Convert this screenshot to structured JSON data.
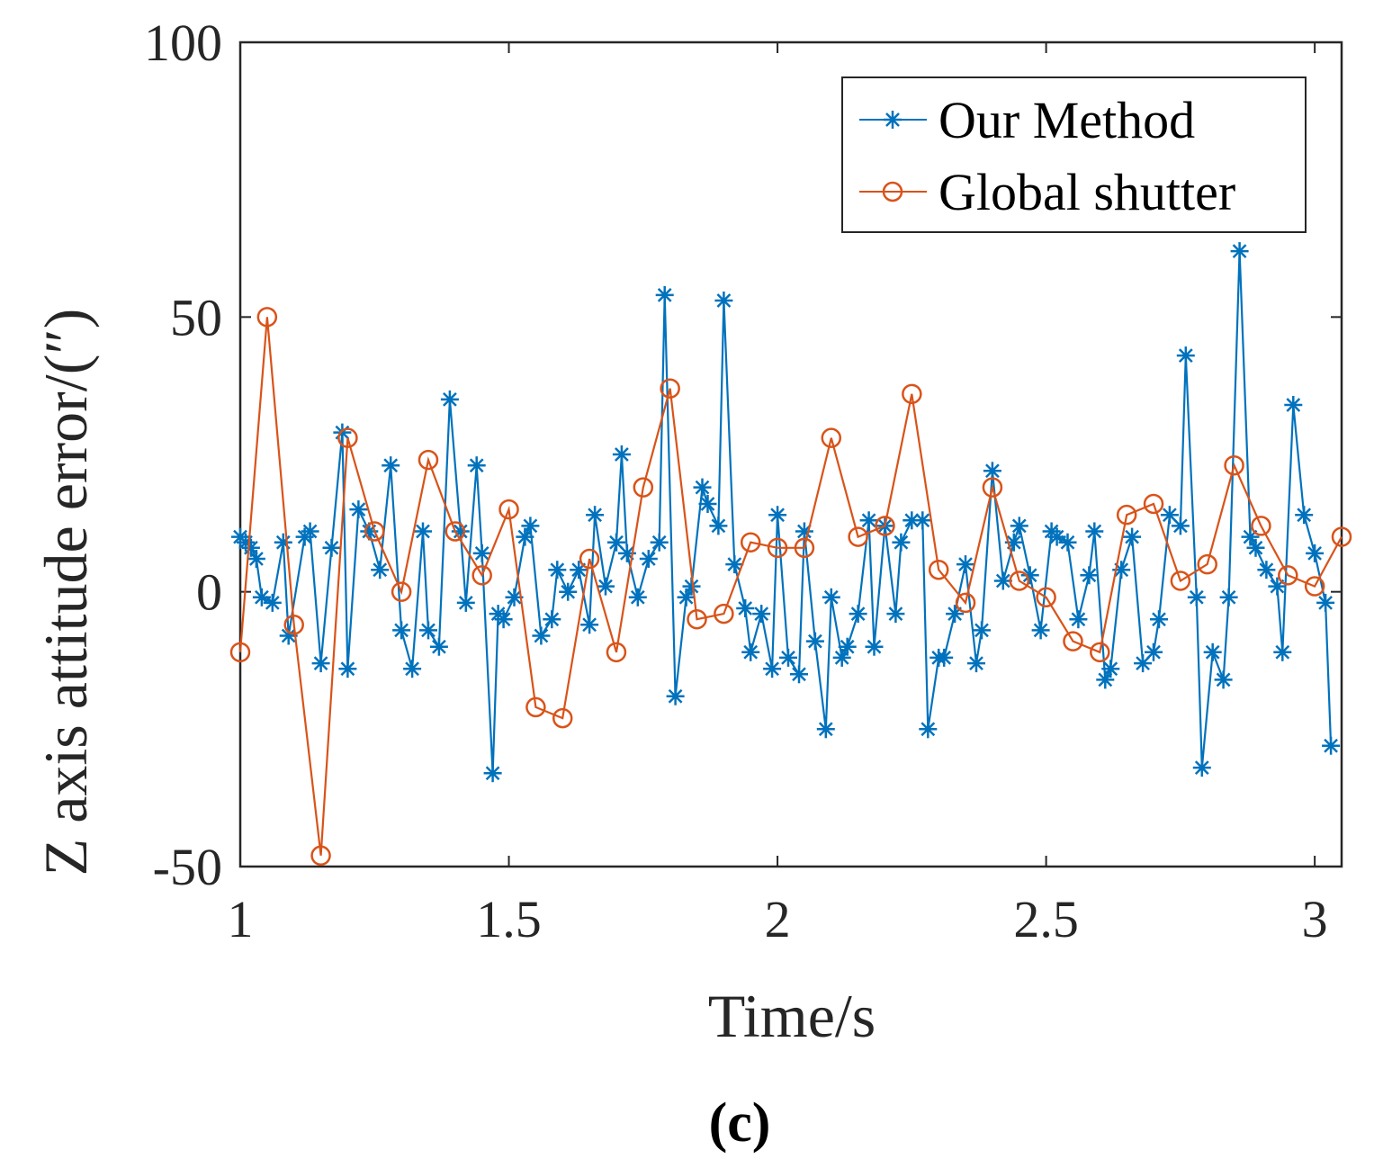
{
  "chart_data": {
    "type": "line",
    "title": "",
    "xlabel": "Time/s",
    "ylabel": "Z axis attitude error/(″)",
    "panel_label": "(c)",
    "xlim": [
      1,
      3.05
    ],
    "ylim": [
      -50,
      100
    ],
    "xticks": [
      1,
      1.5,
      2,
      2.5,
      3
    ],
    "xtick_labels": [
      "1",
      "1.5",
      "2",
      "2.5",
      "3"
    ],
    "yticks": [
      -50,
      0,
      50,
      100
    ],
    "ytick_labels": [
      "-50",
      "0",
      "50",
      "100"
    ],
    "grid": false,
    "legend_position": "top-right",
    "series": [
      {
        "name": "Our Method",
        "color": "#0072BD",
        "marker": "asterisk",
        "x": [
          1.0,
          1.01,
          1.02,
          1.03,
          1.04,
          1.06,
          1.08,
          1.09,
          1.12,
          1.13,
          1.15,
          1.17,
          1.19,
          1.2,
          1.22,
          1.24,
          1.26,
          1.28,
          1.3,
          1.32,
          1.34,
          1.35,
          1.37,
          1.39,
          1.41,
          1.42,
          1.44,
          1.45,
          1.47,
          1.48,
          1.49,
          1.51,
          1.53,
          1.54,
          1.56,
          1.58,
          1.59,
          1.61,
          1.63,
          1.65,
          1.66,
          1.68,
          1.7,
          1.71,
          1.72,
          1.74,
          1.76,
          1.78,
          1.79,
          1.81,
          1.83,
          1.84,
          1.86,
          1.87,
          1.89,
          1.9,
          1.92,
          1.94,
          1.95,
          1.97,
          1.99,
          2.0,
          2.02,
          2.04,
          2.05,
          2.07,
          2.09,
          2.1,
          2.12,
          2.13,
          2.15,
          2.17,
          2.18,
          2.2,
          2.22,
          2.23,
          2.25,
          2.27,
          2.28,
          2.3,
          2.31,
          2.33,
          2.35,
          2.37,
          2.38,
          2.4,
          2.42,
          2.44,
          2.45,
          2.47,
          2.49,
          2.51,
          2.52,
          2.54,
          2.56,
          2.58,
          2.59,
          2.61,
          2.62,
          2.64,
          2.66,
          2.68,
          2.7,
          2.71,
          2.73,
          2.75,
          2.76,
          2.78,
          2.79,
          2.81,
          2.83,
          2.84,
          2.86,
          2.88,
          2.89,
          2.91,
          2.93,
          2.94,
          2.96,
          2.98,
          3.0,
          3.02,
          3.03
        ],
        "values": [
          10,
          9,
          8,
          6,
          -1,
          -2,
          9,
          -8,
          10,
          11,
          -13,
          8,
          29,
          -14,
          15,
          11,
          4,
          23,
          -7,
          -14,
          11,
          -7,
          -10,
          35,
          11,
          -2,
          23,
          7,
          -33,
          -4,
          -5,
          -1,
          10,
          12,
          -8,
          -5,
          4,
          0,
          4,
          -6,
          14,
          1,
          9,
          25,
          7,
          -1,
          6,
          9,
          54,
          -19,
          -1,
          1,
          19,
          16,
          12,
          53,
          5,
          -3,
          -11,
          -4,
          -14,
          14,
          -12,
          -15,
          11,
          -9,
          -25,
          -1,
          -12,
          -10,
          -4,
          13,
          -10,
          12,
          -4,
          9,
          13,
          13,
          -25,
          -12,
          -12,
          -4,
          5,
          -13,
          -7,
          22,
          2,
          9,
          12,
          3,
          -7,
          11,
          10,
          9,
          -5,
          3,
          11,
          -16,
          -14,
          4,
          10,
          -13,
          -11,
          -5,
          14,
          12,
          43,
          -1,
          -32,
          -11,
          -16,
          -1,
          62,
          10,
          8,
          4,
          1,
          -11,
          34,
          14,
          7,
          -2,
          -28
        ],
        "ymin_note": ""
      },
      {
        "name": "Global shutter",
        "color": "#D95319",
        "marker": "circle",
        "x": [
          1.0,
          1.05,
          1.1,
          1.15,
          1.2,
          1.25,
          1.3,
          1.35,
          1.4,
          1.45,
          1.5,
          1.55,
          1.6,
          1.65,
          1.7,
          1.75,
          1.8,
          1.85,
          1.9,
          1.95,
          2.0,
          2.05,
          2.1,
          2.15,
          2.2,
          2.25,
          2.3,
          2.35,
          2.4,
          2.45,
          2.5,
          2.55,
          2.6,
          2.65,
          2.7,
          2.75,
          2.8,
          2.85,
          2.9,
          2.95,
          3.0,
          3.05
        ],
        "values": [
          -11,
          50,
          -6,
          -48,
          28,
          11,
          0,
          24,
          11,
          3,
          15,
          -21,
          -23,
          6,
          -11,
          19,
          37,
          -5,
          -4,
          9,
          8,
          8,
          28,
          10,
          12,
          36,
          4,
          -2,
          19,
          2,
          -1,
          -9,
          -11,
          14,
          16,
          2,
          5,
          23,
          12,
          3,
          1,
          10
        ]
      }
    ]
  }
}
